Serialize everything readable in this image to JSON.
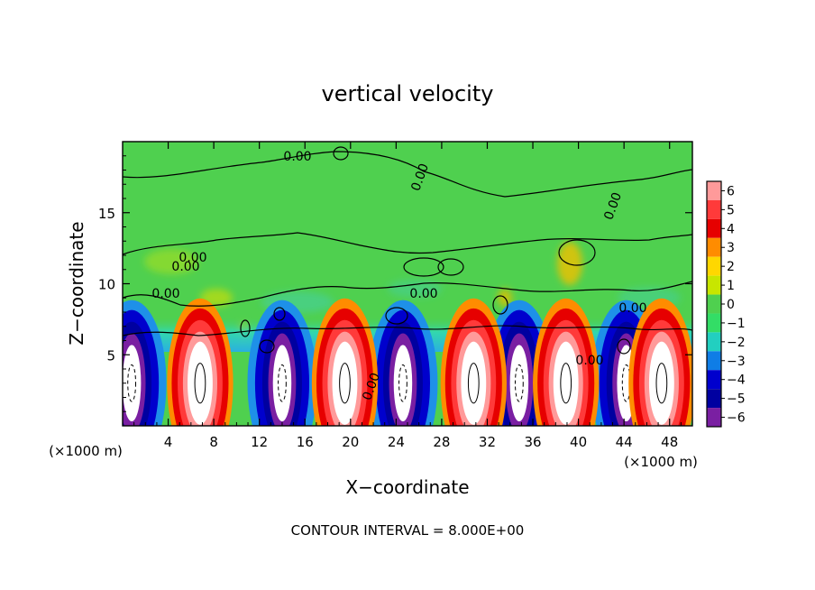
{
  "chart_data": {
    "type": "heatmap",
    "title": "vertical velocity",
    "xlabel": "X−coordinate",
    "ylabel": "Z−coordinate",
    "x_unit_label": "(×1000 m)",
    "y_unit_label": "(×1000 m)",
    "footer": "CONTOUR INTERVAL = 8.000E+00",
    "xlim": [
      0,
      50
    ],
    "ylim": [
      0,
      20
    ],
    "x_ticks": [
      4,
      8,
      12,
      16,
      20,
      24,
      28,
      32,
      36,
      40,
      44,
      48
    ],
    "y_ticks": [
      5,
      10,
      15
    ],
    "colorbar": {
      "levels": [
        6,
        5,
        4,
        3,
        2,
        1,
        0,
        -1,
        -2,
        -3,
        -4,
        -5,
        -6
      ],
      "labels": [
        "6",
        "5",
        "4",
        "3",
        "2",
        "1",
        "0",
        "−1",
        "−2",
        "−3",
        "−4",
        "−5",
        "−6"
      ],
      "colors": [
        "#ff9a9a",
        "#ff3a3a",
        "#e60000",
        "#ff8c00",
        "#ffd700",
        "#c8e600",
        "#4fd04f",
        "#33dd66",
        "#22cfc0",
        "#0f7de6",
        "#0000cd",
        "#0000a0",
        "#7a1fa2"
      ]
    },
    "contour_labels": [
      "0.00",
      "0.00",
      "0.00",
      "0.00",
      "0.00",
      "0.00",
      "0.00",
      "0.00",
      "0.00",
      "0.00"
    ],
    "updrafts_x": [
      6.8,
      19.5,
      30.8,
      38.9,
      47.3
    ],
    "downdrafts_x": [
      0.8,
      14.0,
      24.6,
      34.8,
      44.2
    ],
    "cell_center_z": 3.0
  }
}
